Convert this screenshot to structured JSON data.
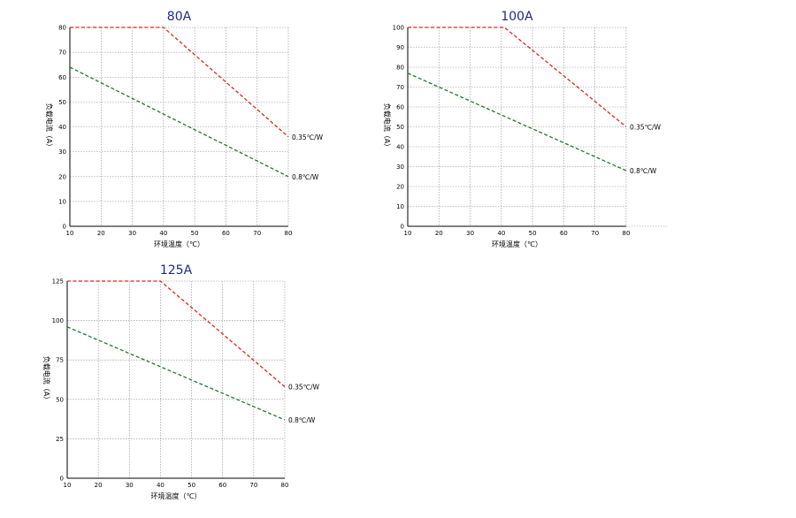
{
  "chart_data": [
    {
      "type": "line",
      "title": "80A",
      "xlabel": "环境温度（℃）",
      "ylabel": "负载电流（A）",
      "xlim": [
        10,
        80
      ],
      "ylim": [
        0,
        80
      ],
      "x_ticks": [
        "10",
        "20",
        "30",
        "40",
        "50",
        "60",
        "70",
        "80"
      ],
      "y_ticks": [
        "0",
        "10",
        "20",
        "30",
        "40",
        "50",
        "60",
        "70",
        "80"
      ],
      "grid": true,
      "series": [
        {
          "name": "0.35℃/W",
          "color": "#e0261c",
          "x": [
            10,
            40,
            80
          ],
          "y": [
            80,
            80,
            36
          ]
        },
        {
          "name": "0.8℃/W",
          "color": "#1e7a2a",
          "x": [
            10,
            80
          ],
          "y": [
            64,
            20
          ]
        }
      ]
    },
    {
      "type": "line",
      "title": "100A",
      "xlabel": "环境温度（℃）",
      "ylabel": "负载电流（A）",
      "xlim": [
        10,
        80
      ],
      "ylim": [
        0,
        100
      ],
      "x_ticks": [
        "10",
        "20",
        "30",
        "40",
        "50",
        "60",
        "70",
        "80"
      ],
      "y_ticks": [
        "0",
        "10",
        "20",
        "30",
        "40",
        "50",
        "60",
        "70",
        "80",
        "90",
        "100"
      ],
      "grid": true,
      "series": [
        {
          "name": "0.35℃/W",
          "color": "#e0261c",
          "x": [
            10,
            41,
            80
          ],
          "y": [
            100,
            100,
            50
          ]
        },
        {
          "name": "0.8℃/W",
          "color": "#1e7a2a",
          "x": [
            10,
            80
          ],
          "y": [
            77,
            28
          ]
        }
      ]
    },
    {
      "type": "line",
      "title": "125A",
      "xlabel": "环境温度（℃）",
      "ylabel": "负载电流（A）",
      "xlim": [
        10,
        80
      ],
      "ylim": [
        0,
        125
      ],
      "x_ticks": [
        "10",
        "20",
        "30",
        "40",
        "50",
        "60",
        "70",
        "80"
      ],
      "y_ticks": [
        "0",
        "25",
        "50",
        "75",
        "100",
        "125"
      ],
      "grid": true,
      "series": [
        {
          "name": "0.35℃/W",
          "color": "#e0261c",
          "x": [
            10,
            40,
            80
          ],
          "y": [
            125,
            125,
            58
          ]
        },
        {
          "name": "0.8℃/W",
          "color": "#1e7a2a",
          "x": [
            10,
            80
          ],
          "y": [
            96,
            37
          ]
        }
      ]
    }
  ]
}
